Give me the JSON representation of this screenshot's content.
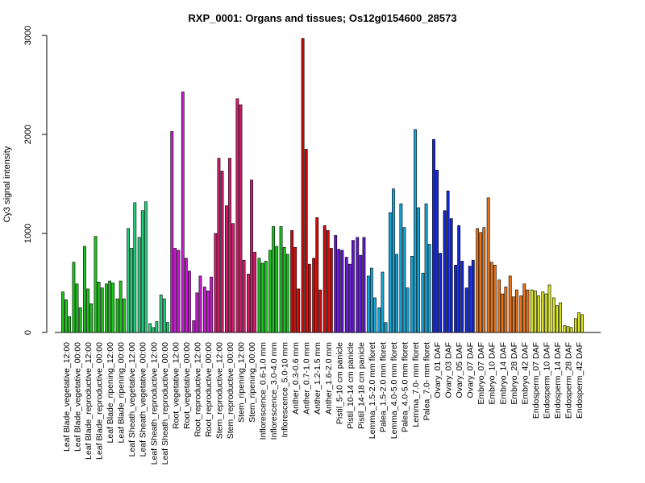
{
  "chart_data": {
    "type": "bar",
    "title": "RXP_0001: Organs and tissues; Os12g0154600_28573",
    "xlabel": "",
    "ylabel": "Cy3 signal intensity",
    "ylim": [
      0,
      3000
    ],
    "yticks": [
      0,
      1000,
      2000,
      3000
    ],
    "grid": false,
    "legend": "none",
    "categories": [
      "Leaf Blade_vegetative_12:00",
      "Leaf Blade_vegetative_00:00",
      "Leaf Blade_reproductive_12:00",
      "Leaf Blade_reproductive_00:00",
      "Leaf Blade_ripening_12:00",
      "Leaf Blade_ripening_00:00",
      "Leaf Sheath_vegetative_12:00",
      "Leaf Sheath_vegetative_00:00",
      "Leaf Sheath_reproductive_12:00",
      "Leaf Sheath_reproductive_00:00",
      "Root_vegetative_12:00",
      "Root_vegetative_00:00",
      "Root_reproductive_12:00",
      "Root_reproductive_00:00",
      "Stem_reproductive_12:00",
      "Stem_reproductive_00:00",
      "Stem_ripening_12:00",
      "Stem_ripening_00:00",
      "Inflorescence_0.6-1.0 mm",
      "Inflorescence_3.0-4.0 mm",
      "Inflorescence_5.0-10 mm",
      "Anther_0.3-0.6 mm",
      "Anther_0.7-1.0 mm",
      "Anther_1.2-1.5 mm",
      "Anther_1.6-2.0 mm",
      "Pistil_5-10 cm panicle",
      "Pistil_10-14 cm panicle",
      "Pistil_14-18 cm panicle",
      "Lemma_1.5-2.0 mm floret",
      "Palea_1.5-2.0 mm floret",
      "Lemma_4.0-5.0 mm floret",
      "Palea_4.0-5.0 mm floret",
      "Lemma_7.0- mm floret",
      "Palea_7.0- mm floret",
      "Ovary_01 DAF",
      "Ovary_03 DAF",
      "Ovary_05 DAF",
      "Ovary_07 DAF",
      "Embryo_07 DAF",
      "Embryo_10 DAF",
      "Embryo_14 DAF",
      "Embryo_28 DAF",
      "Embryo_42 DAF",
      "Endosperm_07 DAF",
      "Endosperm_10 DAF",
      "Endosperm_14 DAF",
      "Endosperm_28 DAF",
      "Endosperm_42 DAF"
    ],
    "group_values": [
      [
        410,
        330,
        160
      ],
      [
        710,
        490,
        250
      ],
      [
        870,
        440,
        290
      ],
      [
        970,
        510,
        450
      ],
      [
        490,
        520,
        500
      ],
      [
        340,
        520,
        340
      ],
      [
        1050,
        850,
        1310
      ],
      [
        960,
        1230,
        1320
      ],
      [
        90,
        50,
        110
      ],
      [
        380,
        340,
        100
      ],
      [
        2030,
        850,
        830
      ],
      [
        2430,
        750,
        620
      ],
      [
        120,
        400,
        570
      ],
      [
        460,
        420,
        560
      ],
      [
        1000,
        1760,
        1630
      ],
      [
        1280,
        1760,
        1100
      ],
      [
        2360,
        2300,
        730
      ],
      [
        590,
        1540,
        810
      ],
      [
        750,
        700,
        720
      ],
      [
        830,
        1070,
        870
      ],
      [
        1070,
        860,
        790
      ],
      [
        1030,
        860,
        440
      ],
      [
        2970,
        1850,
        690
      ],
      [
        750,
        1160,
        430
      ],
      [
        1080,
        1030,
        850
      ],
      [
        980,
        840,
        830
      ],
      [
        760,
        690,
        930
      ],
      [
        960,
        780,
        960
      ],
      [
        570,
        650,
        350
      ],
      [
        250,
        610,
        100
      ],
      [
        1210,
        1450,
        790
      ],
      [
        1300,
        1060,
        450
      ],
      [
        770,
        2050,
        1260
      ],
      [
        600,
        1300,
        890
      ],
      [
        1950,
        1640,
        800
      ],
      [
        1230,
        1430,
        1150
      ],
      [
        680,
        1080,
        720
      ],
      [
        450,
        670,
        730
      ],
      [
        1050,
        1010,
        1060
      ],
      [
        1360,
        710,
        680
      ],
      [
        530,
        390,
        460
      ],
      [
        570,
        360,
        430
      ],
      [
        370,
        490,
        430
      ],
      [
        430,
        420,
        370
      ],
      [
        410,
        390,
        480
      ],
      [
        350,
        270,
        300
      ],
      [
        70,
        60,
        50
      ],
      [
        140,
        200,
        180
      ]
    ],
    "colors": [
      "#1fc41f",
      "#1fc41f",
      "#1fc41f",
      "#1fc41f",
      "#1fc41f",
      "#1fc41f",
      "#23cd7c",
      "#23cd7c",
      "#23cd7c",
      "#23cd7c",
      "#c81ad2",
      "#c81ad2",
      "#c81ad2",
      "#c81ad2",
      "#d01c6d",
      "#d01c6d",
      "#d01c6d",
      "#d01c6d",
      "#19c61c",
      "#19c61c",
      "#19c61c",
      "#cc0b0b",
      "#cc0b0b",
      "#cc0b0b",
      "#cc0b0b",
      "#6414d8",
      "#6414d8",
      "#6414d8",
      "#15a7d8",
      "#15a7d8",
      "#15a7d8",
      "#15a7d8",
      "#15a7d8",
      "#15a7d8",
      "#1228d8",
      "#1228d8",
      "#1228d8",
      "#1228d8",
      "#e87316",
      "#e87316",
      "#e87316",
      "#e87316",
      "#e87316",
      "#d9e31e",
      "#d9e31e",
      "#d9e31e",
      "#d9e31e",
      "#d9e31e"
    ]
  }
}
